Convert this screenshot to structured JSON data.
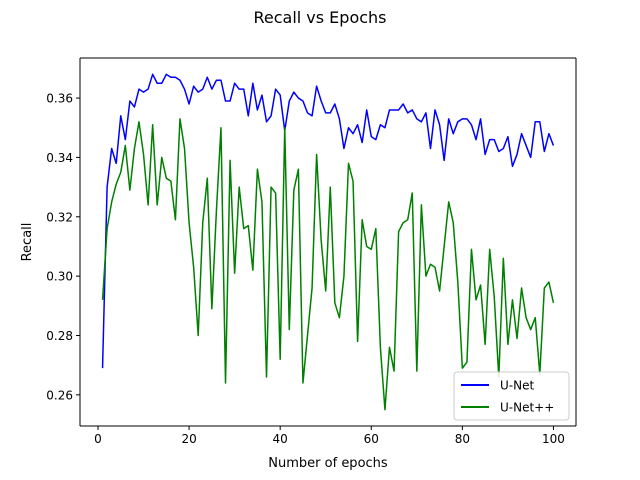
{
  "chart_data": {
    "type": "line",
    "title": "Recall vs Epochs",
    "xlabel": "Number of epochs",
    "ylabel": "Recall",
    "xlim": [
      -3.95,
      104.95
    ],
    "ylim": [
      0.2495,
      0.3735
    ],
    "xticks": [
      0,
      20,
      40,
      60,
      80,
      100
    ],
    "yticks": [
      0.26,
      0.28,
      0.3,
      0.32,
      0.34,
      0.36
    ],
    "grid": false,
    "legend_position": "lower-right",
    "x": [
      1,
      2,
      3,
      4,
      5,
      6,
      7,
      8,
      9,
      10,
      11,
      12,
      13,
      14,
      15,
      16,
      17,
      18,
      19,
      20,
      21,
      22,
      23,
      24,
      25,
      26,
      27,
      28,
      29,
      30,
      31,
      32,
      33,
      34,
      35,
      36,
      37,
      38,
      39,
      40,
      41,
      42,
      43,
      44,
      45,
      46,
      47,
      48,
      49,
      50,
      51,
      52,
      53,
      54,
      55,
      56,
      57,
      58,
      59,
      60,
      61,
      62,
      63,
      64,
      65,
      66,
      67,
      68,
      69,
      70,
      71,
      72,
      73,
      74,
      75,
      76,
      77,
      78,
      79,
      80,
      81,
      82,
      83,
      84,
      85,
      86,
      87,
      88,
      89,
      90,
      91,
      92,
      93,
      94,
      95,
      96,
      97,
      98,
      99,
      100
    ],
    "series": [
      {
        "name": "U-Net",
        "color": "#0000ff",
        "values": [
          0.269,
          0.33,
          0.343,
          0.338,
          0.354,
          0.346,
          0.359,
          0.357,
          0.363,
          0.362,
          0.363,
          0.368,
          0.365,
          0.365,
          0.368,
          0.367,
          0.367,
          0.366,
          0.363,
          0.358,
          0.364,
          0.362,
          0.363,
          0.367,
          0.363,
          0.366,
          0.366,
          0.359,
          0.359,
          0.365,
          0.363,
          0.363,
          0.354,
          0.365,
          0.356,
          0.361,
          0.352,
          0.354,
          0.363,
          0.361,
          0.349,
          0.359,
          0.362,
          0.36,
          0.359,
          0.355,
          0.354,
          0.364,
          0.359,
          0.355,
          0.355,
          0.358,
          0.353,
          0.343,
          0.35,
          0.348,
          0.351,
          0.345,
          0.356,
          0.347,
          0.346,
          0.351,
          0.35,
          0.356,
          0.356,
          0.356,
          0.358,
          0.355,
          0.356,
          0.353,
          0.352,
          0.355,
          0.343,
          0.356,
          0.351,
          0.339,
          0.353,
          0.348,
          0.352,
          0.353,
          0.353,
          0.351,
          0.346,
          0.353,
          0.341,
          0.346,
          0.346,
          0.342,
          0.343,
          0.347,
          0.337,
          0.341,
          0.348,
          0.344,
          0.34,
          0.352,
          0.352,
          0.342,
          0.348,
          0.344
        ]
      },
      {
        "name": "U-Net++",
        "color": "#008000",
        "values": [
          0.292,
          0.316,
          0.325,
          0.331,
          0.335,
          0.344,
          0.329,
          0.343,
          0.352,
          0.341,
          0.324,
          0.351,
          0.324,
          0.34,
          0.333,
          0.332,
          0.319,
          0.353,
          0.343,
          0.318,
          0.303,
          0.28,
          0.318,
          0.333,
          0.289,
          0.322,
          0.35,
          0.264,
          0.339,
          0.301,
          0.33,
          0.316,
          0.317,
          0.302,
          0.336,
          0.325,
          0.266,
          0.33,
          0.328,
          0.272,
          0.35,
          0.282,
          0.329,
          0.336,
          0.264,
          0.28,
          0.296,
          0.341,
          0.312,
          0.295,
          0.33,
          0.291,
          0.286,
          0.3,
          0.338,
          0.332,
          0.278,
          0.319,
          0.31,
          0.309,
          0.316,
          0.276,
          0.255,
          0.276,
          0.268,
          0.315,
          0.318,
          0.319,
          0.328,
          0.268,
          0.324,
          0.3,
          0.304,
          0.303,
          0.295,
          0.31,
          0.325,
          0.318,
          0.298,
          0.269,
          0.271,
          0.309,
          0.292,
          0.297,
          0.277,
          0.309,
          0.293,
          0.266,
          0.306,
          0.277,
          0.292,
          0.279,
          0.296,
          0.286,
          0.282,
          0.286,
          0.267,
          0.296,
          0.298,
          0.291
        ]
      }
    ]
  }
}
